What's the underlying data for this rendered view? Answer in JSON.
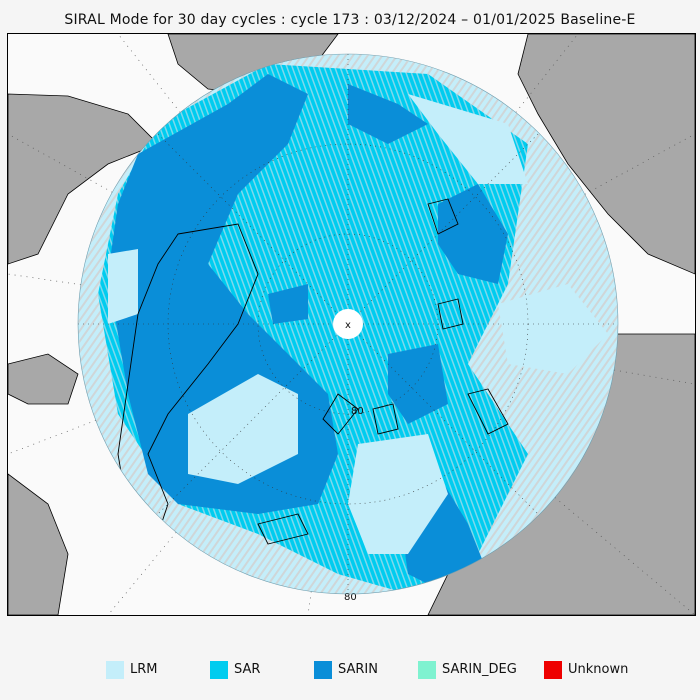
{
  "title": "SIRAL Mode for 30 day cycles : cycle 173 : 03/12/2024 – 01/01/2025 Baseline-E",
  "map": {
    "projection": "north polar stereographic",
    "grid_labels": [
      "80",
      "80"
    ],
    "pole_marker": "x"
  },
  "legend": [
    {
      "label": "LRM",
      "color": "#c4eefa"
    },
    {
      "label": "SAR",
      "color": "#00ccef"
    },
    {
      "label": "SARIN",
      "color": "#0a8ed8"
    },
    {
      "label": "SARIN_DEG",
      "color": "#7ff2d0"
    },
    {
      "label": "Unknown",
      "color": "#ee0000"
    }
  ],
  "colors": {
    "land": "#a8a8a8",
    "ocean_outside": "#fafafa",
    "coastline": "#000000",
    "track_grey": "#b0b0b0"
  }
}
